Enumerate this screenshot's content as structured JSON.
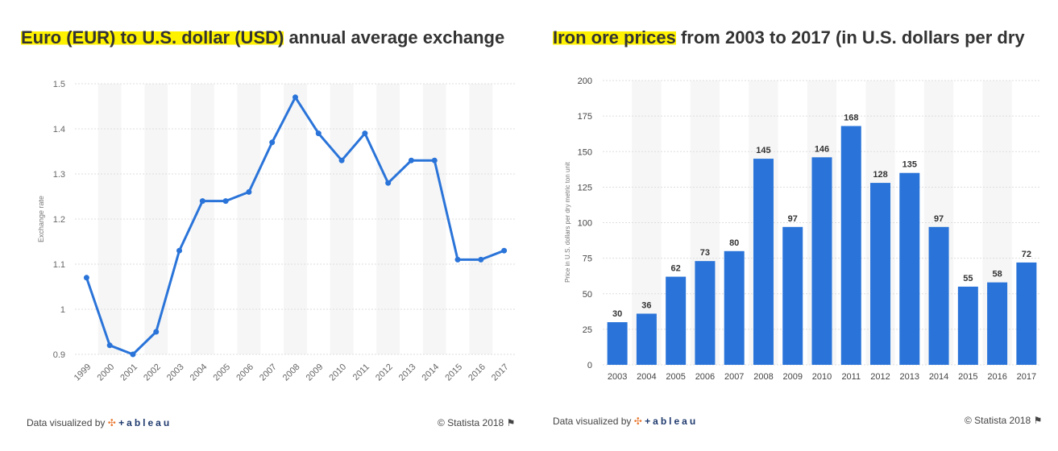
{
  "chart_data": [
    {
      "type": "line",
      "title_highlight": "Euro (EUR) to U.S. dollar (USD)",
      "title_rest": " annual average exchange",
      "ylabel": "Exchange rate",
      "xlabel": "",
      "ylim": [
        0.9,
        1.5
      ],
      "yticks": [
        "0.9",
        "1",
        "1.1",
        "1.2",
        "1.3",
        "1.4",
        "1.5"
      ],
      "x": [
        "1999",
        "2000",
        "2001",
        "2002",
        "2003",
        "2004",
        "2005",
        "2006",
        "2007",
        "2008",
        "2009",
        "2010",
        "2011",
        "2012",
        "2013",
        "2014",
        "2015",
        "2016",
        "2017"
      ],
      "values": [
        1.07,
        0.92,
        0.9,
        0.95,
        1.13,
        1.24,
        1.24,
        1.26,
        1.37,
        1.47,
        1.39,
        1.33,
        1.39,
        1.28,
        1.33,
        1.33,
        1.11,
        1.11,
        1.13
      ],
      "color": "#2a74d9",
      "grid": true
    },
    {
      "type": "bar",
      "title_highlight": "Iron ore prices",
      "title_rest": " from 2003 to 2017 (in U.S. dollars per dry",
      "ylabel": "Price in U.S. dollars per dry metric ton unit",
      "xlabel": "",
      "ylim": [
        0,
        200
      ],
      "yticks": [
        "0",
        "25",
        "50",
        "75",
        "100",
        "125",
        "150",
        "175",
        "200"
      ],
      "categories": [
        "2003",
        "2004",
        "2005",
        "2006",
        "2007",
        "2008",
        "2009",
        "2010",
        "2011",
        "2012",
        "2013",
        "2014",
        "2015",
        "2016",
        "2017"
      ],
      "values": [
        30,
        36,
        62,
        73,
        80,
        145,
        97,
        146,
        168,
        128,
        135,
        97,
        55,
        58,
        72
      ],
      "color": "#2a74d9",
      "grid": true
    }
  ],
  "footer": {
    "visualized": "Data visualized by",
    "brand": "+ableau",
    "copyright": "© Statista 2018",
    "flag_icon": "flag-icon"
  }
}
